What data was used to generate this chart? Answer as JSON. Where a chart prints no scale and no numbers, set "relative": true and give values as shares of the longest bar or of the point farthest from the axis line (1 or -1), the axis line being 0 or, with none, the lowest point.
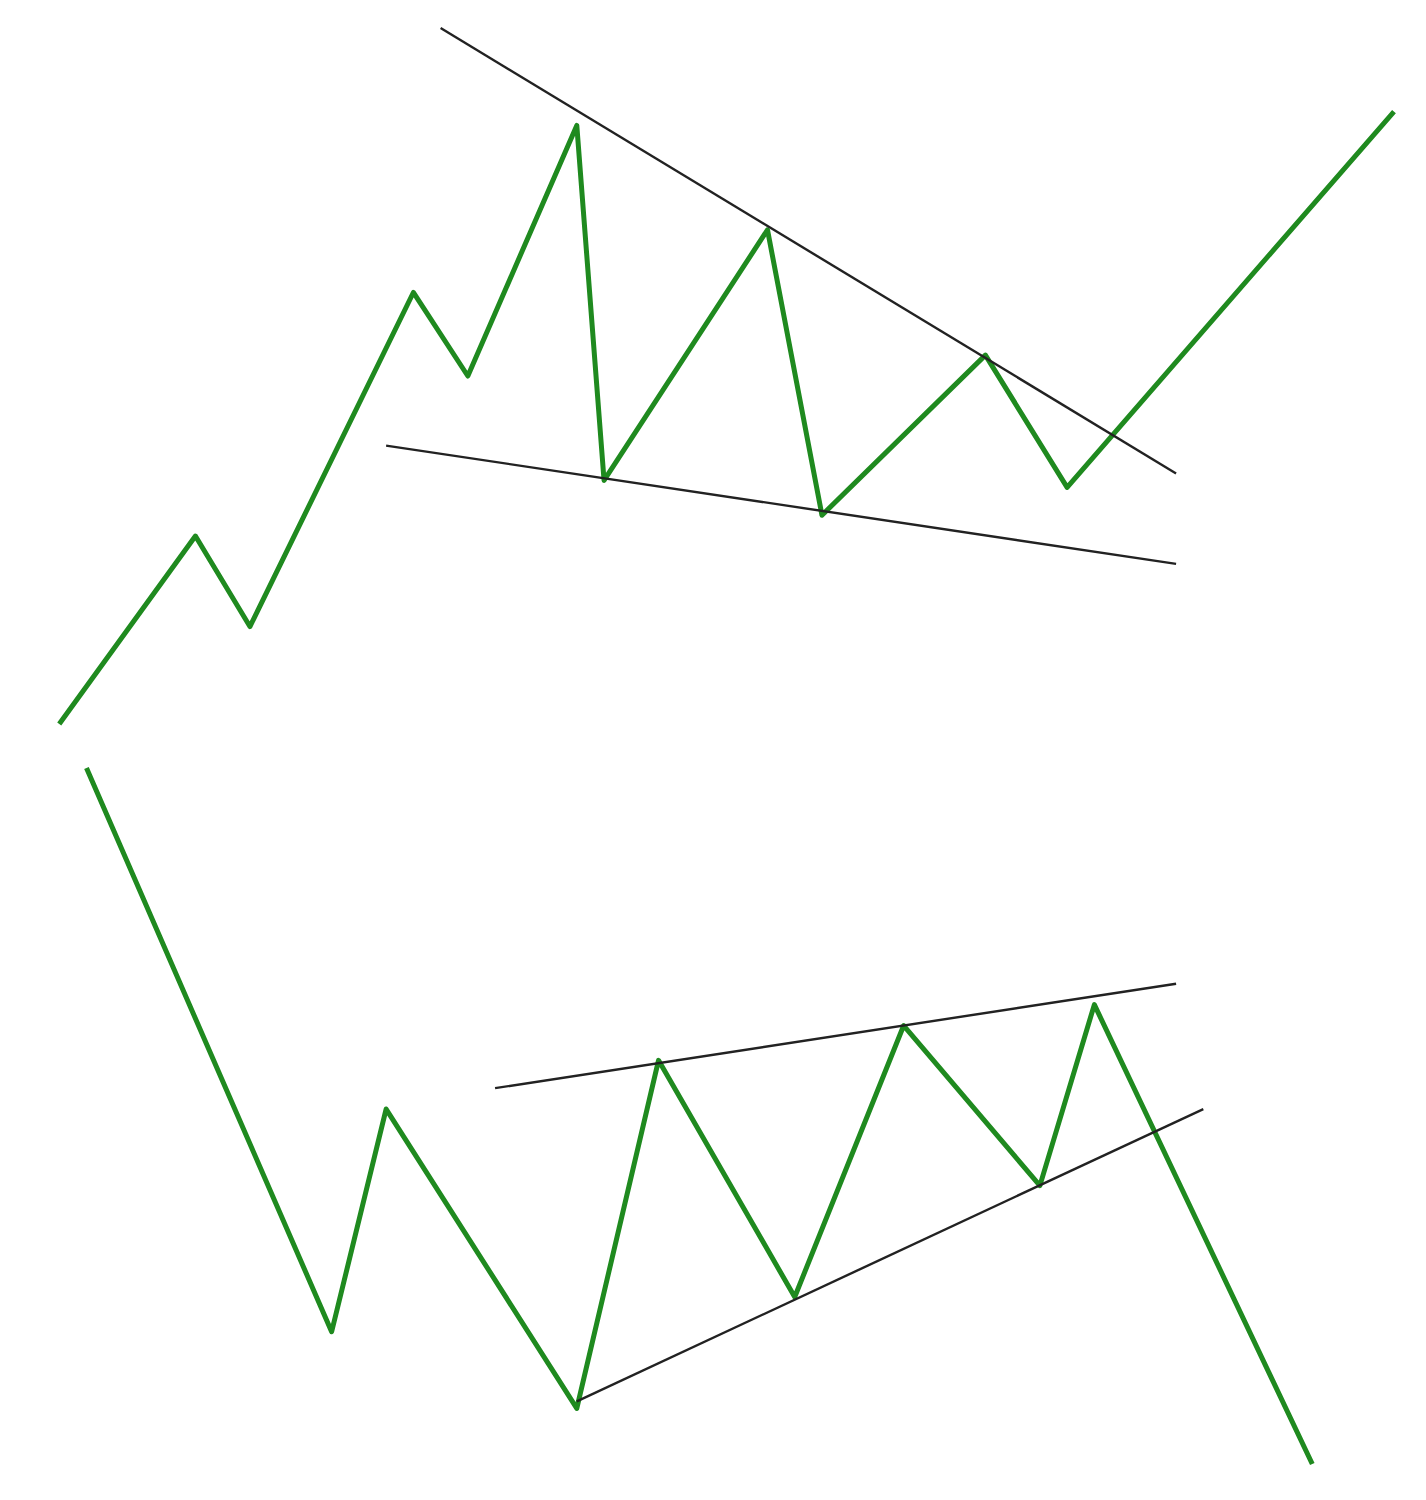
{
  "chart_data": [
    {
      "type": "line",
      "relative": true,
      "marker": "none",
      "categories": [
        null,
        null,
        null,
        null,
        null,
        null,
        null,
        null,
        null,
        null,
        null,
        null,
        null,
        null,
        null,
        null,
        null,
        null,
        null,
        null,
        null,
        null,
        null,
        null,
        null,
        null,
        null,
        null,
        null,
        null,
        null,
        null,
        null,
        null,
        null,
        null,
        null,
        null,
        null,
        null,
        null,
        null,
        null,
        null,
        null,
        null,
        null,
        null,
        null,
        null,
        null
      ],
      "series": [
        {
          "color": "#1f8a1f",
          "values": [
            null,
            0,
            null,
            null,
            null,
            null,
            0.27,
            null,
            0.14,
            null,
            null,
            null,
            null,
            null,
            0.62,
            null,
            0.5,
            null,
            null,
            null,
            0.86,
            0.35,
            null,
            null,
            null,
            null,
            null,
            0.71,
            null,
            0.3,
            null,
            null,
            null,
            null,
            null,
            0.53,
            null,
            null,
            0.34,
            null,
            null,
            null,
            null,
            null,
            null,
            null,
            null,
            null,
            null,
            null,
            0.88
          ]
        },
        {
          "color": "#222222",
          "values": [
            null,
            null,
            null,
            null,
            null,
            null,
            null,
            null,
            null,
            null,
            null,
            null,
            null,
            null,
            null,
            1.0,
            null,
            null,
            null,
            null,
            null,
            null,
            null,
            null,
            null,
            null,
            null,
            null,
            null,
            null,
            null,
            null,
            null,
            null,
            null,
            null,
            null,
            null,
            null,
            null,
            null,
            null,
            0.36,
            null,
            null,
            null,
            null,
            null,
            null,
            null,
            null
          ]
        },
        {
          "color": "#222222",
          "values": [
            null,
            null,
            null,
            null,
            null,
            null,
            null,
            null,
            null,
            null,
            null,
            null,
            null,
            0.4,
            null,
            null,
            null,
            null,
            null,
            null,
            null,
            null,
            null,
            null,
            null,
            null,
            null,
            null,
            null,
            null,
            null,
            null,
            null,
            null,
            null,
            null,
            null,
            null,
            null,
            null,
            null,
            null,
            0.23,
            null,
            null,
            null,
            null,
            null,
            null,
            null,
            null
          ]
        }
      ]
    },
    {
      "type": "line",
      "relative": true,
      "marker": "none",
      "categories": [
        null,
        null,
        null,
        null,
        null,
        null,
        null,
        null,
        null,
        null,
        null,
        null,
        null,
        null,
        null,
        null,
        null,
        null,
        null,
        null,
        null,
        null,
        null,
        null,
        null,
        null,
        null,
        null,
        null,
        null,
        null,
        null,
        null,
        null,
        null,
        null,
        null,
        null,
        null,
        null,
        null,
        null,
        null,
        null,
        null,
        null,
        null,
        null,
        null,
        null,
        null
      ],
      "series": [
        {
          "color": "#1f8a1f",
          "values": [
            null,
            null,
            1.0,
            null,
            null,
            null,
            null,
            null,
            null,
            null,
            null,
            0.19,
            null,
            0.51,
            null,
            null,
            null,
            null,
            null,
            null,
            0.08,
            null,
            null,
            0.58,
            null,
            null,
            null,
            null,
            0.24,
            null,
            null,
            null,
            0.63,
            null,
            null,
            null,
            null,
            0.4,
            null,
            0.66,
            null,
            null,
            null,
            null,
            null,
            null,
            null,
            0,
            null,
            null,
            null
          ]
        },
        {
          "color": "#222222",
          "values": [
            null,
            null,
            null,
            null,
            null,
            null,
            null,
            null,
            null,
            null,
            null,
            null,
            null,
            null,
            null,
            null,
            null,
            0.54,
            null,
            null,
            null,
            null,
            null,
            null,
            null,
            null,
            null,
            null,
            null,
            null,
            null,
            null,
            null,
            null,
            null,
            null,
            null,
            null,
            null,
            null,
            null,
            null,
            0.69,
            null,
            null,
            null,
            null,
            null,
            null,
            null,
            null
          ]
        },
        {
          "color": "#222222",
          "values": [
            null,
            null,
            null,
            null,
            null,
            null,
            null,
            null,
            null,
            null,
            null,
            null,
            null,
            null,
            null,
            null,
            null,
            null,
            null,
            null,
            0.09,
            null,
            null,
            null,
            null,
            null,
            null,
            null,
            null,
            null,
            null,
            null,
            null,
            null,
            null,
            null,
            null,
            null,
            null,
            null,
            null,
            null,
            null,
            0.51,
            null,
            null,
            null,
            null,
            null,
            null,
            null
          ]
        }
      ]
    }
  ]
}
